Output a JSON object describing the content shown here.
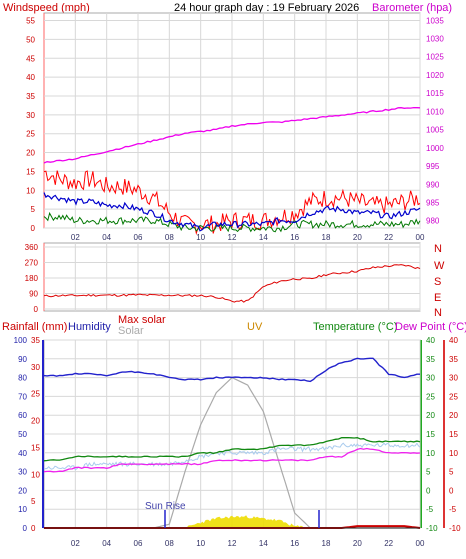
{
  "title": "24 hour graph day : 19 February 2026",
  "colors": {
    "wind_speed": "#ff0000",
    "wind_avg": "#0000cc",
    "wind_lull": "#007700",
    "barometer": "#ee00ee",
    "direction": "#dd0000",
    "humidity": "#2222cc",
    "max_solar": "#aaaaaa",
    "solar": "#eedd00",
    "temperature": "#118811",
    "dew_point": "#ee22ee",
    "feels_like": "#aaccee",
    "rain": "#cc0000",
    "uv": "#222222",
    "grid": "#d8d8d8"
  },
  "x_ticks": [
    "02",
    "04",
    "06",
    "08",
    "10",
    "12",
    "14",
    "16",
    "18",
    "20",
    "22",
    "00"
  ],
  "chart_data": [
    {
      "type": "line",
      "title": "24 hour graph day : 19 February 2026",
      "ylabel": "Windspeed (mph)",
      "ylabel2": "Barometer (hPa)",
      "yticks": [
        "55",
        "50",
        "45",
        "40",
        "35",
        "30",
        "25",
        "20",
        "15",
        "10",
        "5",
        "0"
      ],
      "yticks2": [
        "1035",
        "1030",
        "1025",
        "1020",
        "1015",
        "1010",
        "1005",
        "1000",
        "995",
        "990",
        "985",
        "980"
      ],
      "ylim": [
        0,
        57
      ],
      "ylim2": [
        978,
        1037
      ],
      "x": [
        0,
        1,
        2,
        3,
        4,
        5,
        6,
        7,
        8,
        9,
        10,
        11,
        12,
        13,
        14,
        15,
        16,
        17,
        18,
        19,
        20,
        21,
        22,
        23,
        24
      ],
      "series": [
        {
          "key": "gust",
          "values": [
            15,
            13,
            12,
            13,
            11,
            11,
            10,
            8,
            4,
            1,
            1,
            1,
            2,
            2,
            2,
            3,
            4,
            7,
            8,
            8,
            7,
            6,
            6,
            7,
            8
          ]
        },
        {
          "key": "avg",
          "values": [
            9,
            8,
            7,
            7,
            6,
            6,
            5,
            4,
            2,
            1,
            0,
            1,
            1,
            1,
            1,
            2,
            2,
            4,
            5,
            5,
            4,
            4,
            3,
            4,
            5
          ]
        },
        {
          "key": "lull",
          "values": [
            3,
            3,
            2,
            2,
            2,
            2,
            2,
            2,
            1,
            0,
            0,
            0,
            0,
            0,
            0,
            0,
            1,
            1,
            1,
            1,
            1,
            1,
            1,
            1,
            2
          ]
        },
        {
          "key": "barometer",
          "axis": "right",
          "values": [
            996,
            996.5,
            997,
            998,
            999,
            1000,
            1001,
            1002,
            1003,
            1004,
            1004.5,
            1005,
            1006,
            1006.5,
            1007,
            1007,
            1007.5,
            1008,
            1008.5,
            1009,
            1009.5,
            1010,
            1010.5,
            1011,
            1011
          ]
        }
      ]
    },
    {
      "type": "line",
      "ylabel": "Wind Direction",
      "yticks": [
        "360",
        "270",
        "180",
        "90",
        "0"
      ],
      "compass": [
        "N",
        "W",
        "S",
        "E",
        "N"
      ],
      "ylim": [
        0,
        360
      ],
      "x": [
        0,
        1,
        2,
        3,
        4,
        5,
        6,
        7,
        8,
        9,
        10,
        11,
        12,
        13,
        14,
        15,
        16,
        17,
        18,
        19,
        20,
        21,
        22,
        23,
        24
      ],
      "values": [
        75,
        78,
        78,
        80,
        80,
        80,
        82,
        80,
        80,
        78,
        78,
        70,
        45,
        45,
        130,
        160,
        175,
        175,
        200,
        210,
        220,
        240,
        250,
        255,
        235
      ]
    },
    {
      "type": "line",
      "ylabels": [
        "Rainfall (mm)",
        "Humidity",
        "Max solar",
        "Solar",
        "UV",
        "Temperature (°C)",
        "Dew Point (°C)"
      ],
      "yticks_humidity": [
        "100",
        "90",
        "80",
        "70",
        "60",
        "50",
        "40",
        "30",
        "20",
        "10",
        "0"
      ],
      "yticks_rain": [
        "35",
        "30",
        "25",
        "20",
        "15",
        "10",
        "5",
        "0"
      ],
      "yticks_temp": [
        "40",
        "35",
        "30",
        "25",
        "20",
        "15",
        "10",
        "5",
        "0",
        "-5",
        "-10"
      ],
      "yticks_dew": [
        "40",
        "35",
        "30",
        "25",
        "20",
        "15",
        "10",
        "5",
        "0",
        "-5",
        "-10"
      ],
      "x": [
        0,
        1,
        2,
        3,
        4,
        5,
        6,
        7,
        8,
        9,
        10,
        11,
        12,
        13,
        14,
        15,
        16,
        17,
        18,
        19,
        20,
        21,
        22,
        23,
        24
      ],
      "series": [
        {
          "key": "humidity",
          "values": [
            81,
            81,
            82,
            82,
            81,
            83,
            83,
            82,
            80,
            79,
            79,
            80,
            80,
            80,
            80,
            79,
            79,
            78,
            84,
            88,
            90,
            90,
            82,
            80,
            82
          ]
        },
        {
          "key": "max_solar",
          "values": [
            0,
            0,
            0,
            0,
            0,
            0,
            0,
            0,
            2,
            30,
            55,
            72,
            80,
            76,
            62,
            35,
            8,
            0,
            0,
            0,
            0,
            0,
            0,
            0,
            0
          ]
        },
        {
          "key": "solar",
          "values": [
            0,
            0,
            0,
            0,
            0,
            0,
            0,
            0,
            0,
            0,
            3,
            5,
            6,
            6,
            5,
            4,
            1,
            0,
            0,
            0,
            0,
            0,
            0,
            0,
            0
          ]
        },
        {
          "key": "rain_rate",
          "values": [
            0,
            0,
            0,
            0,
            0,
            0,
            0,
            0,
            0,
            0,
            0,
            0,
            0,
            0,
            0,
            0,
            0,
            0,
            0,
            0,
            1,
            1,
            1,
            1,
            0
          ]
        },
        {
          "key": "uv",
          "values": [
            0,
            0,
            0,
            0,
            0,
            0,
            0,
            0,
            0,
            0,
            0,
            0,
            0,
            0,
            0,
            0,
            0,
            0,
            0,
            0,
            0,
            0,
            0,
            0,
            0
          ]
        },
        {
          "key": "temperature",
          "values": [
            8,
            8,
            9,
            9,
            9,
            9,
            9,
            9,
            9,
            9,
            10,
            10,
            11,
            11,
            11,
            12,
            12,
            12,
            13,
            14,
            14,
            13,
            13,
            13,
            13
          ]
        },
        {
          "key": "dew_point",
          "values": [
            5,
            5,
            6,
            6,
            6,
            7,
            7,
            7,
            7,
            7,
            7,
            8,
            8,
            8,
            8,
            8,
            8,
            8,
            9,
            9,
            11,
            11,
            10,
            10,
            10
          ]
        },
        {
          "key": "feels_like",
          "values": [
            6,
            6,
            6,
            7,
            7,
            7,
            7,
            7,
            7,
            8,
            9,
            10,
            10,
            10,
            10,
            11,
            11,
            11,
            11,
            12,
            12,
            12,
            12,
            12,
            12
          ]
        }
      ]
    }
  ],
  "labels": {
    "windspeed": "Windspeed (mph)",
    "barometer": "Barometer (hpa)",
    "compass_n1": "N",
    "compass_w": "W",
    "compass_s": "S",
    "compass_e": "E",
    "compass_n2": "N",
    "rainfall": "Rainfall (mm)",
    "humidity": "Humidity",
    "max_solar": "Max solar",
    "solar": "Solar",
    "uv": "UV",
    "temperature": "Temperature (°C)",
    "dew_point": "Dew Point (°C)",
    "sun_rise": "Sun Rise"
  }
}
